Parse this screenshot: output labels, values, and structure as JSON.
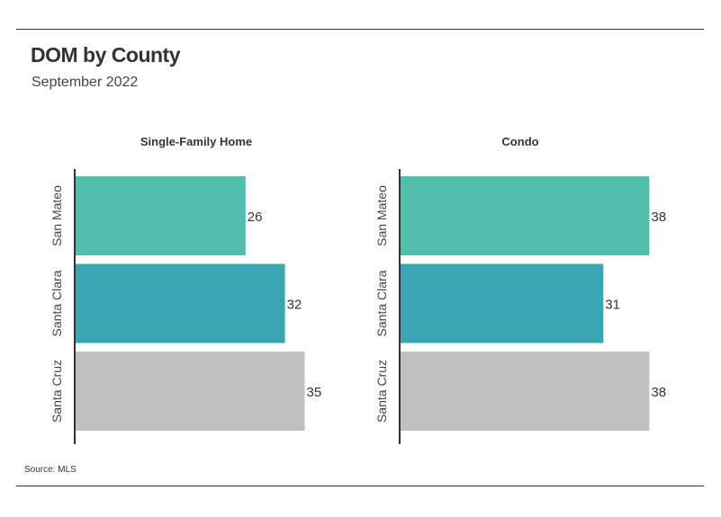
{
  "header": {
    "title": "DOM by County",
    "subtitle": "September 2022"
  },
  "footer": {
    "source": "Source:  MLS"
  },
  "colors": {
    "San Mateo": "#52BEAB",
    "Santa Clara": "#3AA6B3",
    "Santa Cruz": "#C0C0C0",
    "axis": "#333333",
    "text": "#333333"
  },
  "chart_data": [
    {
      "type": "bar",
      "orientation": "horizontal",
      "title": "Single-Family Home",
      "categories": [
        "San Mateo",
        "Santa Clara",
        "Santa Cruz"
      ],
      "values": [
        26,
        32,
        35
      ],
      "xlim": [
        0,
        40
      ],
      "data_labels": true,
      "grid": false
    },
    {
      "type": "bar",
      "orientation": "horizontal",
      "title": "Condo",
      "categories": [
        "San Mateo",
        "Santa Clara",
        "Santa Cruz"
      ],
      "values": [
        38,
        31,
        38
      ],
      "xlim": [
        0,
        40
      ],
      "data_labels": true,
      "grid": false
    }
  ]
}
